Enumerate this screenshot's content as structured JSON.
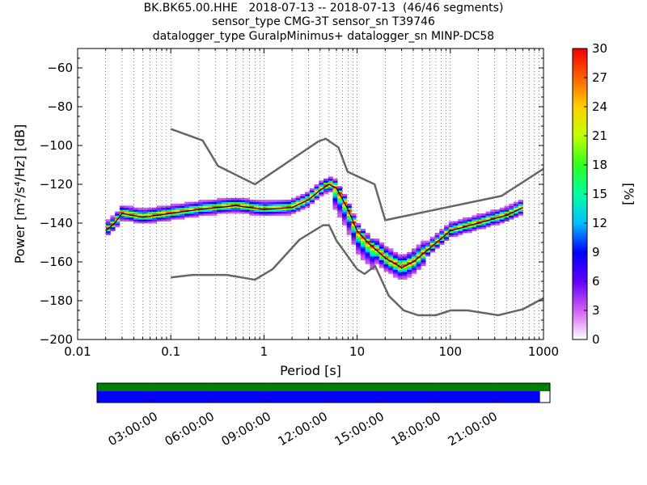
{
  "title_lines": [
    "BK.BK65.00.HHE   2018-07-13 -- 2018-07-13  (46/46 segments)",
    "sensor_type CMG-3T sensor_sn T39746",
    "datalogger_type GuralpMinimus+ datalogger_sn MINP-DC58"
  ],
  "chart_data": {
    "type": "heatmap",
    "xlabel": "Period [s]",
    "ylabel": "Power [m²/s⁴/Hz] [dB]",
    "xscale": "log",
    "xlim": [
      0.01,
      1000
    ],
    "ylim": [
      -200,
      -50
    ],
    "x_ticks": [
      0.01,
      0.1,
      1,
      10,
      100,
      1000
    ],
    "x_tick_labels": [
      "0.01",
      "0.1",
      "1",
      "10",
      "100",
      "1000"
    ],
    "y_ticks": [
      -200,
      -180,
      -160,
      -140,
      -120,
      -100,
      -80,
      -60
    ],
    "y_tick_labels": [
      "−200",
      "−180",
      "−160",
      "−140",
      "−120",
      "−100",
      "−80",
      "−60"
    ],
    "grid": "dotted vertical",
    "noise_models": [
      {
        "name": "NHNM",
        "x": [
          0.1,
          0.22,
          0.32,
          0.8,
          3.8,
          4.6,
          6.3,
          7.9,
          15.4,
          20,
          354,
          1000
        ],
        "y": [
          -91.5,
          -97.4,
          -110.5,
          -120,
          -98,
          -96.5,
          -101,
          -113.5,
          -120,
          -138.5,
          -126,
          -112
        ]
      },
      {
        "name": "NLNM",
        "x": [
          0.1,
          0.17,
          0.4,
          0.8,
          1.24,
          2.4,
          4.3,
          5,
          6,
          10,
          12,
          15.6,
          21.9,
          31.6,
          45,
          70,
          101,
          154,
          328,
          600,
          1000
        ],
        "y": [
          -168,
          -166.7,
          -166.7,
          -169.2,
          -163.7,
          -148.6,
          -141.1,
          -141.1,
          -149,
          -163.8,
          -166.2,
          -162.1,
          -177.5,
          -185,
          -187.5,
          -187.5,
          -185,
          -185,
          -187.5,
          -184.4,
          -178.7
        ]
      }
    ],
    "mode_x": [
      0.02,
      0.025,
      0.03,
      0.05,
      0.1,
      0.2,
      0.5,
      1,
      2,
      3,
      4,
      5,
      6,
      8,
      10,
      13,
      20,
      30,
      40,
      60,
      100,
      200,
      400,
      600
    ],
    "mode_y": [
      -144,
      -140,
      -135,
      -137,
      -135,
      -133,
      -131,
      -133,
      -132,
      -128,
      -123,
      -120,
      -122,
      -133,
      -144,
      -150,
      -158,
      -163,
      -160,
      -153,
      -144,
      -140,
      -136,
      -132
    ],
    "colorbar": {
      "label": "[%]",
      "min": 0,
      "max": 30,
      "ticks": [
        0,
        3,
        6,
        9,
        12,
        15,
        18,
        21,
        24,
        27,
        30
      ]
    },
    "coverage": {
      "time_tick_labels": [
        "03:00:00",
        "06:00:00",
        "09:00:00",
        "12:00:00",
        "15:00:00",
        "18:00:00",
        "21:00:00"
      ],
      "time_ticks_hours": [
        3,
        6,
        9,
        12,
        15,
        18,
        21
      ],
      "data_fraction": 0.978,
      "data_color": "#0000ff",
      "gaps_color": "#008000"
    }
  }
}
